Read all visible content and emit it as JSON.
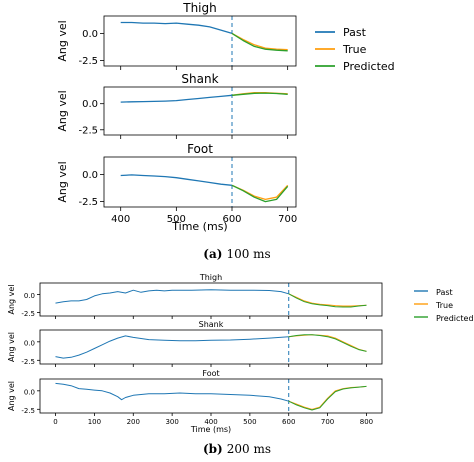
{
  "chart_data": [
    {
      "type": "line",
      "caption": {
        "label": "(a)",
        "text": "100 ms"
      },
      "xlabel": "Time (ms)",
      "xlim": [
        370,
        715
      ],
      "xticks": [
        400,
        500,
        600,
        700
      ],
      "vline": 600,
      "legend": {
        "placement": "right",
        "entries": [
          "Past",
          "True",
          "Predicted"
        ]
      },
      "colors": {
        "Past": "#1f77b4",
        "True": "#ff9e0e",
        "Predicted": "#2ca02c"
      },
      "panels": [
        {
          "title": "Thigh",
          "ylabel": "Ang vel",
          "ylim": [
            -3.0,
            1.6
          ],
          "yticks": [
            0.0,
            -2.5
          ],
          "series": [
            {
              "name": "Past",
              "x": [
                400,
                420,
                440,
                460,
                480,
                500,
                520,
                540,
                560,
                580,
                600
              ],
              "y": [
                1.0,
                1.0,
                0.95,
                0.95,
                0.9,
                0.95,
                0.85,
                0.75,
                0.6,
                0.3,
                0.0
              ]
            },
            {
              "name": "True",
              "x": [
                600,
                620,
                640,
                660,
                680,
                700
              ],
              "y": [
                0.0,
                -0.55,
                -1.05,
                -1.35,
                -1.45,
                -1.5
              ]
            },
            {
              "name": "Predicted",
              "x": [
                600,
                620,
                640,
                660,
                680,
                700
              ],
              "y": [
                0.0,
                -0.65,
                -1.2,
                -1.45,
                -1.55,
                -1.6
              ]
            }
          ]
        },
        {
          "title": "Shank",
          "ylabel": "Ang vel",
          "ylim": [
            -3.0,
            1.6
          ],
          "yticks": [
            0.0,
            -2.5
          ],
          "series": [
            {
              "name": "Past",
              "x": [
                400,
                420,
                440,
                460,
                480,
                500,
                520,
                540,
                560,
                580,
                600
              ],
              "y": [
                0.15,
                0.18,
                0.2,
                0.22,
                0.25,
                0.3,
                0.4,
                0.5,
                0.6,
                0.7,
                0.8
              ]
            },
            {
              "name": "True",
              "x": [
                600,
                620,
                640,
                660,
                680,
                700
              ],
              "y": [
                0.8,
                0.95,
                1.05,
                1.05,
                1.0,
                0.95
              ]
            },
            {
              "name": "Predicted",
              "x": [
                600,
                620,
                640,
                660,
                680,
                700
              ],
              "y": [
                0.8,
                0.9,
                1.0,
                1.02,
                0.98,
                0.9
              ]
            }
          ]
        },
        {
          "title": "Foot",
          "ylabel": "Ang vel",
          "ylim": [
            -3.0,
            1.6
          ],
          "yticks": [
            0.0,
            -2.5
          ],
          "series": [
            {
              "name": "Past",
              "x": [
                400,
                420,
                440,
                460,
                480,
                500,
                520,
                540,
                560,
                580,
                600
              ],
              "y": [
                -0.1,
                -0.05,
                -0.1,
                -0.15,
                -0.2,
                -0.3,
                -0.45,
                -0.6,
                -0.75,
                -0.9,
                -1.0
              ]
            },
            {
              "name": "True",
              "x": [
                600,
                620,
                640,
                660,
                680,
                700
              ],
              "y": [
                -1.0,
                -1.45,
                -2.0,
                -2.3,
                -2.1,
                -1.0
              ]
            },
            {
              "name": "Predicted",
              "x": [
                600,
                620,
                640,
                660,
                680,
                700
              ],
              "y": [
                -1.0,
                -1.5,
                -2.1,
                -2.5,
                -2.3,
                -1.1
              ]
            }
          ]
        }
      ]
    },
    {
      "type": "line",
      "caption": {
        "label": "(b)",
        "text": "200 ms"
      },
      "xlabel": "Time (ms)",
      "xlim": [
        -40,
        840
      ],
      "xticks": [
        0,
        100,
        200,
        300,
        400,
        500,
        600,
        700,
        800
      ],
      "vline": 600,
      "legend": {
        "placement": "right",
        "entries": [
          "Past",
          "True",
          "Predicted"
        ]
      },
      "colors": {
        "Past": "#1f77b4",
        "True": "#ff9e0e",
        "Predicted": "#2ca02c"
      },
      "panels": [
        {
          "title": "Thigh",
          "ylabel": "Ang vel",
          "ylim": [
            -3.0,
            1.6
          ],
          "yticks": [
            0.0,
            -2.5
          ],
          "series": [
            {
              "name": "Past",
              "x": [
                0,
                20,
                40,
                60,
                80,
                100,
                120,
                140,
                160,
                180,
                200,
                220,
                240,
                260,
                280,
                300,
                350,
                400,
                450,
                500,
                550,
                580,
                600
              ],
              "y": [
                -1.2,
                -1.0,
                -0.9,
                -0.9,
                -0.7,
                -0.2,
                0.1,
                0.2,
                0.4,
                0.2,
                0.6,
                0.3,
                0.5,
                0.6,
                0.5,
                0.6,
                0.6,
                0.65,
                0.6,
                0.6,
                0.55,
                0.4,
                0.1
              ]
            },
            {
              "name": "True",
              "x": [
                600,
                620,
                640,
                660,
                680,
                700,
                720,
                740,
                760,
                780,
                800
              ],
              "y": [
                0.1,
                -0.4,
                -0.9,
                -1.2,
                -1.35,
                -1.45,
                -1.55,
                -1.6,
                -1.6,
                -1.55,
                -1.5
              ]
            },
            {
              "name": "Predicted",
              "x": [
                600,
                620,
                640,
                660,
                680,
                700,
                720,
                740,
                760,
                780,
                800
              ],
              "y": [
                0.1,
                -0.5,
                -1.0,
                -1.3,
                -1.45,
                -1.55,
                -1.7,
                -1.75,
                -1.75,
                -1.6,
                -1.5
              ]
            }
          ]
        },
        {
          "title": "Shank",
          "ylabel": "Ang vel",
          "ylim": [
            -3.0,
            1.6
          ],
          "yticks": [
            0.0,
            -2.5
          ],
          "series": [
            {
              "name": "Past",
              "x": [
                0,
                20,
                40,
                60,
                80,
                100,
                120,
                140,
                160,
                180,
                200,
                240,
                280,
                320,
                360,
                400,
                450,
                500,
                550,
                600
              ],
              "y": [
                -2.0,
                -2.2,
                -2.1,
                -1.8,
                -1.4,
                -0.9,
                -0.4,
                0.1,
                0.5,
                0.8,
                0.6,
                0.3,
                0.2,
                0.15,
                0.15,
                0.2,
                0.25,
                0.35,
                0.5,
                0.7
              ]
            },
            {
              "name": "True",
              "x": [
                600,
                620,
                640,
                660,
                680,
                700,
                720,
                740,
                760,
                780,
                800
              ],
              "y": [
                0.7,
                0.8,
                0.9,
                0.95,
                0.9,
                0.8,
                0.5,
                0.0,
                -0.5,
                -1.0,
                -1.3
              ]
            },
            {
              "name": "Predicted",
              "x": [
                600,
                620,
                640,
                660,
                680,
                700,
                720,
                740,
                760,
                780,
                800
              ],
              "y": [
                0.7,
                0.85,
                0.95,
                0.95,
                0.85,
                0.7,
                0.4,
                -0.1,
                -0.6,
                -1.05,
                -1.3
              ]
            }
          ]
        },
        {
          "title": "Foot",
          "ylabel": "Ang vel",
          "ylim": [
            -3.0,
            1.6
          ],
          "yticks": [
            0.0,
            -2.5
          ],
          "series": [
            {
              "name": "Past",
              "x": [
                0,
                20,
                40,
                60,
                80,
                100,
                120,
                140,
                160,
                170,
                180,
                200,
                240,
                280,
                320,
                360,
                400,
                450,
                500,
                550,
                580,
                600
              ],
              "y": [
                1.0,
                0.9,
                0.7,
                0.3,
                0.2,
                0.1,
                0.0,
                -0.3,
                -0.8,
                -1.2,
                -0.9,
                -0.6,
                -0.4,
                -0.4,
                -0.3,
                -0.4,
                -0.4,
                -0.5,
                -0.6,
                -0.8,
                -1.1,
                -1.4
              ]
            },
            {
              "name": "True",
              "x": [
                600,
                620,
                640,
                660,
                680,
                700,
                720,
                740,
                760,
                780,
                800
              ],
              "y": [
                -1.4,
                -1.8,
                -2.2,
                -2.5,
                -2.2,
                -1.0,
                0.0,
                0.3,
                0.45,
                0.5,
                0.6
              ]
            },
            {
              "name": "Predicted",
              "x": [
                600,
                620,
                640,
                660,
                680,
                700,
                720,
                740,
                760,
                780,
                800
              ],
              "y": [
                -1.4,
                -1.9,
                -2.3,
                -2.6,
                -2.3,
                -1.1,
                -0.1,
                0.25,
                0.4,
                0.5,
                0.6
              ]
            }
          ]
        }
      ]
    }
  ]
}
